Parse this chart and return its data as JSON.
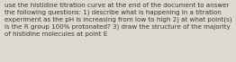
{
  "text": "use the histidine titration curve at the end of the document to answer the following questions: 1) describe what is happening in a titration experiment as the pH is increasing from low to high 2) at what point(s) is the R group 100% protonated? 3) draw the structure of the majority of histidine molecules at point E",
  "background_color": "#dedad2",
  "text_color": "#3a3530",
  "font_size": 5.1,
  "fig_width": 2.62,
  "fig_height": 0.69,
  "dpi": 100
}
